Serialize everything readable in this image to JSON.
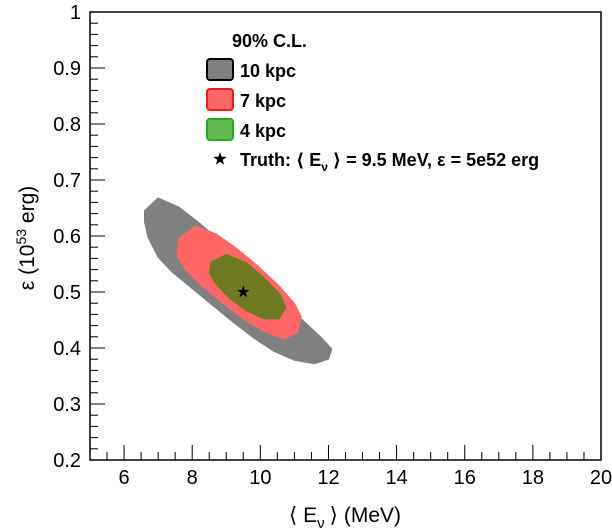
{
  "chart_data": {
    "type": "contour",
    "title": "",
    "xlabel": "⟨ Eν ⟩ (MeV)",
    "xlabel_parts": {
      "open": "⟨",
      "symbol": "E",
      "subscript": "ν",
      "close": "⟩",
      "unit": "(MeV)"
    },
    "ylabel": "ε (10^53 erg)",
    "ylabel_parts": {
      "symbol": "ε",
      "base": "(10",
      "exponent": "53",
      "unit": " erg)"
    },
    "xlim": [
      5,
      20
    ],
    "ylim": [
      0.2,
      1.0
    ],
    "xticks": [
      6,
      8,
      10,
      12,
      14,
      16,
      18,
      20
    ],
    "xtick_labels": [
      "6",
      "8",
      "10",
      "12",
      "14",
      "16",
      "18",
      "20"
    ],
    "yticks": [
      0.2,
      0.3,
      0.4,
      0.5,
      0.6,
      0.7,
      0.8,
      0.9,
      1.0
    ],
    "ytick_labels": [
      "0.2",
      "0.3",
      "0.4",
      "0.5",
      "0.6",
      "0.7",
      "0.8",
      "0.9",
      "1"
    ],
    "grid": false,
    "legend": {
      "placement": "top-center",
      "title": "90% C.L.",
      "truth_label": "Truth: ⟨ Eν ⟩ = 9.5 MeV, ε = 5e52 erg",
      "truth_parts": {
        "prefix": "Truth: ⟨ E",
        "subscript": "ν",
        "suffix": " ⟩ = 9.5 MeV, ε = 5e52 erg"
      }
    },
    "series": [
      {
        "name": "10 kpc",
        "color": "#808080",
        "border": "#000000",
        "contour": [
          [
            6.6,
            0.645
          ],
          [
            7.0,
            0.668
          ],
          [
            7.6,
            0.652
          ],
          [
            8.2,
            0.624
          ],
          [
            8.8,
            0.592
          ],
          [
            9.4,
            0.558
          ],
          [
            10.0,
            0.522
          ],
          [
            10.6,
            0.486
          ],
          [
            11.2,
            0.452
          ],
          [
            11.8,
            0.418
          ],
          [
            12.1,
            0.398
          ],
          [
            12.0,
            0.38
          ],
          [
            11.6,
            0.372
          ],
          [
            11.0,
            0.378
          ],
          [
            10.4,
            0.394
          ],
          [
            9.8,
            0.418
          ],
          [
            9.2,
            0.446
          ],
          [
            8.6,
            0.476
          ],
          [
            8.0,
            0.506
          ],
          [
            7.4,
            0.536
          ],
          [
            7.0,
            0.562
          ],
          [
            6.7,
            0.598
          ],
          [
            6.6,
            0.625
          ]
        ]
      },
      {
        "name": "7 kpc",
        "color": "#ff6666",
        "border": "#e02020",
        "contour": [
          [
            7.6,
            0.595
          ],
          [
            8.1,
            0.618
          ],
          [
            8.7,
            0.604
          ],
          [
            9.3,
            0.578
          ],
          [
            9.9,
            0.548
          ],
          [
            10.5,
            0.514
          ],
          [
            11.0,
            0.48
          ],
          [
            11.2,
            0.456
          ],
          [
            11.1,
            0.428
          ],
          [
            10.7,
            0.416
          ],
          [
            10.1,
            0.43
          ],
          [
            9.5,
            0.452
          ],
          [
            8.9,
            0.48
          ],
          [
            8.3,
            0.51
          ],
          [
            7.8,
            0.54
          ],
          [
            7.55,
            0.565
          ]
        ]
      },
      {
        "name": "4 kpc",
        "color": "#66bb55",
        "border": "#22aa22",
        "contour": [
          [
            8.55,
            0.553
          ],
          [
            9.0,
            0.567
          ],
          [
            9.6,
            0.552
          ],
          [
            10.1,
            0.526
          ],
          [
            10.6,
            0.494
          ],
          [
            10.75,
            0.472
          ],
          [
            10.55,
            0.452
          ],
          [
            10.1,
            0.452
          ],
          [
            9.6,
            0.466
          ],
          [
            9.1,
            0.488
          ],
          [
            8.7,
            0.514
          ],
          [
            8.5,
            0.535
          ]
        ]
      }
    ],
    "overlap_color": "#707a22",
    "truth": {
      "x": 9.5,
      "y": 0.5,
      "marker": "star",
      "color": "#000000"
    }
  }
}
